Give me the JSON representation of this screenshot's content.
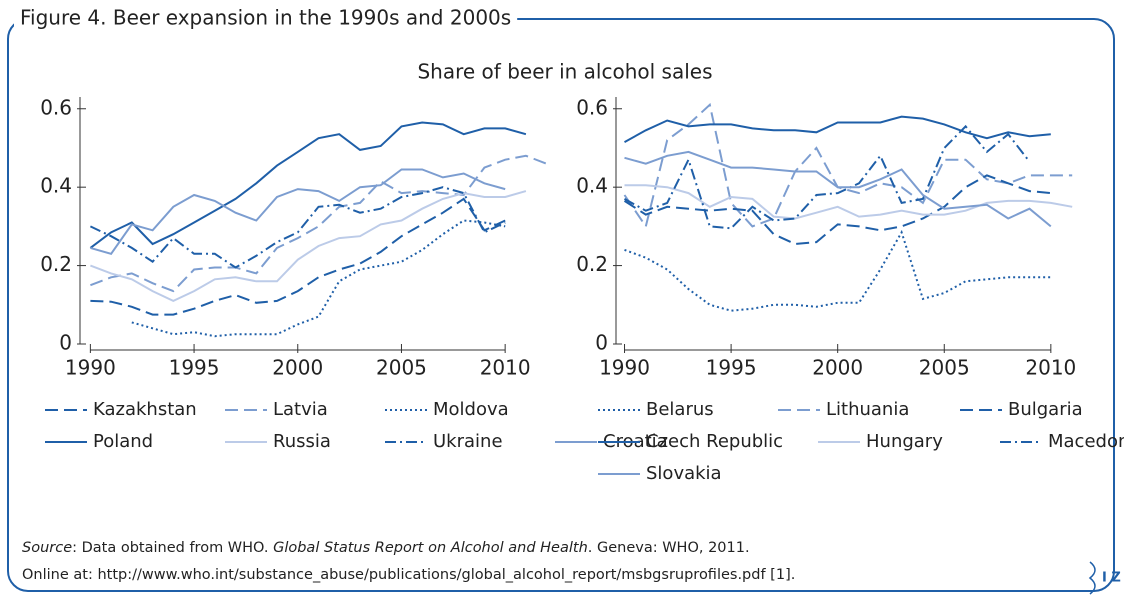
{
  "figure_title": "Figure 4. Beer expansion in the 1990s and 2000s",
  "subtitle": "Share of beer in alcohol sales",
  "source": {
    "label": "Source",
    "text1": ": Data obtained from WHO. ",
    "report": "Global Status Report on Alcohol and Health",
    "text2": ". Geneva: WHO, 2011.",
    "line2": "Online at: http://www.who.int/substance_abuse/publications/global_alcohol_report/msbgsruprofiles.pdf [1]."
  },
  "logo": "I Z A",
  "chart_data": [
    {
      "type": "line",
      "x": [
        1990,
        1991,
        1992,
        1993,
        1994,
        1995,
        1996,
        1997,
        1998,
        1999,
        2000,
        2001,
        2002,
        2003,
        2004,
        2005,
        2006,
        2007,
        2008,
        2009,
        2010,
        2011,
        2012
      ],
      "xlim": [
        1989.5,
        2012.5
      ],
      "xticks": [
        1990,
        1995,
        2000,
        2005,
        2010
      ],
      "ylim": [
        0,
        0.63
      ],
      "yticks": [
        0,
        0.2,
        0.4,
        0.6
      ],
      "series": [
        {
          "name": "Kazakhstan",
          "color": "#1f5fa8",
          "dash": "dashed",
          "values": [
            0.11,
            0.108,
            0.095,
            0.075,
            0.075,
            0.09,
            0.11,
            0.125,
            0.105,
            0.11,
            0.135,
            0.17,
            0.19,
            0.205,
            0.235,
            0.275,
            0.305,
            0.335,
            0.37,
            0.29,
            0.315,
            null,
            null
          ]
        },
        {
          "name": "Latvia",
          "color": "#7c9dd0",
          "dash": "dashed",
          "values": [
            0.15,
            0.17,
            0.18,
            0.155,
            0.135,
            0.19,
            0.195,
            0.195,
            0.18,
            0.245,
            0.27,
            0.3,
            0.35,
            0.36,
            0.415,
            0.385,
            0.39,
            0.385,
            0.38,
            0.45,
            0.47,
            0.48,
            0.46
          ]
        },
        {
          "name": "Moldova",
          "color": "#1f5fa8",
          "dash": "dotted",
          "values": [
            null,
            null,
            0.055,
            0.04,
            0.025,
            0.03,
            0.02,
            0.025,
            0.025,
            0.025,
            0.05,
            0.07,
            0.16,
            0.19,
            0.2,
            0.21,
            0.24,
            0.28,
            0.315,
            0.31,
            0.3,
            null,
            null
          ]
        },
        {
          "name": "Poland",
          "color": "#1f5fa8",
          "dash": "solid",
          "values": [
            0.245,
            0.285,
            0.31,
            0.255,
            0.28,
            0.31,
            0.34,
            0.37,
            0.41,
            0.455,
            0.49,
            0.525,
            0.535,
            0.495,
            0.505,
            0.555,
            0.565,
            0.56,
            0.535,
            0.55,
            0.55,
            0.535,
            null
          ]
        },
        {
          "name": "Russia",
          "color": "#bccbe8",
          "dash": "solid",
          "values": [
            0.2,
            0.18,
            0.165,
            0.135,
            0.11,
            0.135,
            0.165,
            0.17,
            0.16,
            0.16,
            0.215,
            0.25,
            0.27,
            0.275,
            0.305,
            0.315,
            0.345,
            0.37,
            0.385,
            0.375,
            0.375,
            0.39,
            null
          ]
        },
        {
          "name": "Ukraine",
          "color": "#1f5fa8",
          "dash": "dashdot",
          "values": [
            0.3,
            0.275,
            0.245,
            0.21,
            0.27,
            0.23,
            0.23,
            0.195,
            0.225,
            0.26,
            0.285,
            0.35,
            0.355,
            0.335,
            0.345,
            0.375,
            0.385,
            0.4,
            0.385,
            0.285,
            0.31,
            null,
            null
          ]
        },
        {
          "name": "Croatia",
          "color": "#7c9dd0",
          "dash": "solid",
          "values": [
            0.245,
            0.23,
            0.305,
            0.29,
            0.35,
            0.38,
            0.365,
            0.335,
            0.315,
            0.375,
            0.395,
            0.39,
            0.365,
            0.4,
            0.405,
            0.445,
            0.445,
            0.425,
            0.435,
            0.41,
            0.395,
            null,
            null
          ]
        }
      ]
    },
    {
      "type": "line",
      "x": [
        1990,
        1991,
        1992,
        1993,
        1994,
        1995,
        1996,
        1997,
        1998,
        1999,
        2000,
        2001,
        2002,
        2003,
        2004,
        2005,
        2006,
        2007,
        2008,
        2009,
        2010,
        2011
      ],
      "xlim": [
        1989.6,
        2012.4
      ],
      "xticks": [
        1990,
        1995,
        2000,
        2005,
        2010
      ],
      "ylim": [
        0,
        0.63
      ],
      "yticks": [
        0,
        0.2,
        0.4,
        0.6
      ],
      "series": [
        {
          "name": "Belarus",
          "color": "#1f5fa8",
          "dash": "dotted",
          "values": [
            0.24,
            0.22,
            0.19,
            0.14,
            0.1,
            0.085,
            0.09,
            0.1,
            0.1,
            0.095,
            0.105,
            0.105,
            0.19,
            0.285,
            0.115,
            0.13,
            0.16,
            0.165,
            0.17,
            0.17,
            0.17,
            null
          ]
        },
        {
          "name": "Lithuania",
          "color": "#7c9dd0",
          "dash": "dashed",
          "values": [
            0.38,
            0.3,
            0.52,
            0.56,
            0.61,
            0.36,
            0.3,
            0.32,
            0.44,
            0.5,
            0.4,
            0.385,
            0.41,
            0.4,
            0.36,
            0.47,
            0.47,
            0.42,
            0.41,
            0.43,
            0.43,
            0.43
          ]
        },
        {
          "name": "Bulgaria",
          "color": "#1f5fa8",
          "dash": "dashed",
          "values": [
            0.365,
            0.33,
            0.35,
            0.345,
            0.34,
            0.345,
            0.34,
            0.28,
            0.255,
            0.26,
            0.305,
            0.3,
            0.29,
            0.3,
            0.32,
            0.35,
            0.4,
            0.43,
            0.41,
            0.39,
            0.385,
            null
          ]
        },
        {
          "name": "Czech Republic",
          "color": "#1f5fa8",
          "dash": "solid",
          "values": [
            0.515,
            0.545,
            0.57,
            0.555,
            0.56,
            0.56,
            0.55,
            0.545,
            0.545,
            0.54,
            0.565,
            0.565,
            0.565,
            0.58,
            0.575,
            0.56,
            0.54,
            0.525,
            0.54,
            0.53,
            0.535,
            null
          ]
        },
        {
          "name": "Hungary",
          "color": "#bccbe8",
          "dash": "solid",
          "values": [
            0.405,
            0.405,
            0.4,
            0.385,
            0.35,
            0.375,
            0.37,
            0.325,
            0.32,
            0.335,
            0.35,
            0.325,
            0.33,
            0.34,
            0.33,
            0.33,
            0.34,
            0.36,
            0.365,
            0.365,
            0.36,
            0.35
          ]
        },
        {
          "name": "Macedonia",
          "color": "#1f5fa8",
          "dash": "dashdot",
          "values": [
            0.37,
            0.34,
            0.36,
            0.47,
            0.3,
            0.295,
            0.35,
            0.315,
            0.32,
            0.38,
            0.385,
            0.41,
            0.48,
            0.36,
            0.37,
            0.5,
            0.555,
            0.49,
            0.535,
            0.465,
            null,
            null
          ]
        },
        {
          "name": "Slovakia",
          "color": "#7c9dd0",
          "dash": "solid",
          "values": [
            0.475,
            0.46,
            0.48,
            0.49,
            0.47,
            0.45,
            0.45,
            0.445,
            0.44,
            0.44,
            0.4,
            0.4,
            0.42,
            0.445,
            0.38,
            0.345,
            0.35,
            0.355,
            0.32,
            0.345,
            0.3,
            null
          ]
        }
      ]
    }
  ]
}
